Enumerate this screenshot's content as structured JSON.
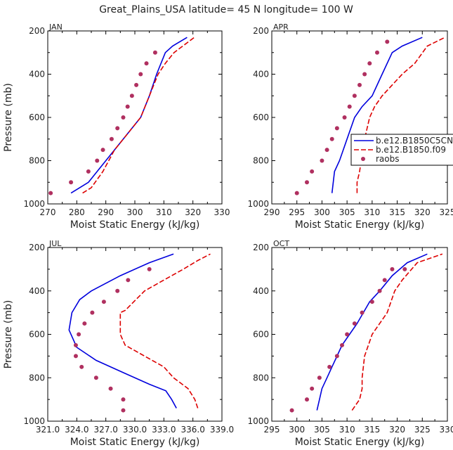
{
  "figure_title": "Great_Plains_USA   latitude= 45 N longitude= 100 W",
  "colors": {
    "model_coupled": "#0000dd",
    "model_f09": "#dd0000",
    "raobs": "#b03060"
  },
  "legend": {
    "entries": [
      {
        "label": "b.e12.B1850C5CN",
        "style": "solid"
      },
      {
        "label": "b.e12.B1850.f09",
        "style": "dashed"
      },
      {
        "label": "raobs",
        "style": "dots"
      }
    ]
  },
  "chart_data": [
    {
      "type": "line",
      "title": "JAN",
      "xlabel": "Moist Static Energy (kJ/kg)",
      "ylabel": "Pressure (mb)",
      "xlim": [
        270,
        330
      ],
      "ylim": [
        1000,
        200
      ],
      "xticks": [
        270,
        280,
        290,
        300,
        310,
        320,
        330
      ],
      "xtick_labels": [
        "270",
        "280",
        "290",
        "300",
        "310",
        "320",
        "330"
      ],
      "yticks": [
        200,
        400,
        600,
        800,
        1000
      ],
      "ytick_labels": [
        "200",
        "400",
        "600",
        "800",
        "1000"
      ],
      "series": [
        {
          "name": "b.e12.B1850C5CN",
          "style": "solid",
          "x": [
            278,
            281,
            284,
            287,
            290,
            293,
            296,
            299,
            302,
            305,
            307.5,
            310.5,
            313,
            318
          ],
          "y": [
            950,
            925,
            900,
            850,
            800,
            750,
            700,
            650,
            600,
            500,
            400,
            300,
            270,
            230
          ]
        },
        {
          "name": "b.e12.B1850.f09",
          "style": "dashed",
          "x": [
            282,
            285,
            289,
            293,
            296,
            299,
            302,
            305,
            308,
            310.5,
            313.5,
            316.5,
            320.5
          ],
          "y": [
            950,
            925,
            850,
            750,
            700,
            650,
            600,
            500,
            400,
            350,
            300,
            270,
            230
          ]
        },
        {
          "name": "raobs",
          "style": "dots",
          "x": [
            271,
            278,
            284,
            287,
            289,
            292,
            294,
            296,
            297.5,
            299,
            300.5,
            302,
            304,
            307
          ],
          "y": [
            950,
            900,
            850,
            800,
            750,
            700,
            650,
            600,
            550,
            500,
            450,
            400,
            350,
            300
          ]
        }
      ]
    },
    {
      "type": "line",
      "title": "APR",
      "xlabel": "Moist Static Energy (kJ/kg)",
      "ylabel": "",
      "xlim": [
        290,
        325
      ],
      "ylim": [
        1000,
        200
      ],
      "xticks": [
        290,
        295,
        300,
        305,
        310,
        315,
        320,
        325
      ],
      "xtick_labels": [
        "290",
        "295",
        "300",
        "305",
        "310",
        "315",
        "320",
        "325"
      ],
      "yticks": [
        200,
        400,
        600,
        800,
        1000
      ],
      "ytick_labels": [
        "200",
        "400",
        "600",
        "800",
        "1000"
      ],
      "series": [
        {
          "name": "b.e12.B1850C5CN",
          "style": "solid",
          "x": [
            302,
            302.5,
            303.5,
            305,
            306.5,
            308,
            310,
            312,
            314,
            316,
            320
          ],
          "y": [
            950,
            850,
            800,
            700,
            600,
            550,
            500,
            400,
            300,
            270,
            230
          ]
        },
        {
          "name": "b.e12.B1850.f09",
          "style": "dashed",
          "x": [
            307,
            307,
            307.5,
            308.5,
            309.5,
            310.5,
            312,
            314,
            316,
            318.5,
            321,
            324.5
          ],
          "y": [
            950,
            900,
            850,
            700,
            600,
            550,
            500,
            450,
            400,
            350,
            270,
            230
          ]
        },
        {
          "name": "raobs",
          "style": "dots",
          "x": [
            295,
            297,
            298,
            300,
            301,
            302,
            303,
            304.5,
            305.5,
            306.5,
            307.5,
            308.5,
            309.5,
            311,
            313
          ],
          "y": [
            950,
            900,
            850,
            800,
            750,
            700,
            650,
            600,
            550,
            500,
            450,
            400,
            350,
            300,
            250
          ]
        }
      ]
    },
    {
      "type": "line",
      "title": "JUL",
      "xlabel": "Moist Static Energy (kJ/kg)",
      "ylabel": "Pressure (mb)",
      "xlim": [
        321,
        339
      ],
      "ylim": [
        1000,
        200
      ],
      "xticks": [
        321,
        324,
        327,
        330,
        333,
        336,
        339
      ],
      "xtick_labels": [
        "321.0",
        "324.0",
        "327.0",
        "330.0",
        "333.0",
        "336.0",
        "339.0"
      ],
      "yticks": [
        200,
        400,
        600,
        800,
        1000
      ],
      "ytick_labels": [
        "200",
        "400",
        "600",
        "800",
        "1000"
      ],
      "series": [
        {
          "name": "b.e12.B1850C5CN",
          "style": "solid",
          "x": [
            334.3,
            333.8,
            333.2,
            331.5,
            329,
            326,
            324,
            323.2,
            323.5,
            324.3,
            325.5,
            328.5,
            331.5,
            334
          ],
          "y": [
            940,
            900,
            860,
            830,
            780,
            720,
            660,
            580,
            500,
            440,
            400,
            330,
            270,
            230
          ]
        },
        {
          "name": "b.e12.B1850.f09",
          "style": "dashed",
          "x": [
            336.5,
            336.2,
            335.5,
            334,
            333,
            331,
            329,
            328.5,
            328.5,
            329,
            331,
            333,
            335,
            336.5,
            337.8
          ],
          "y": [
            940,
            900,
            850,
            800,
            750,
            700,
            650,
            600,
            500,
            490,
            400,
            350,
            300,
            260,
            230
          ]
        },
        {
          "name": "raobs",
          "style": "dots",
          "x": [
            328.8,
            328.8,
            327.5,
            326,
            324.5,
            323.9,
            323.9,
            324.2,
            324.8,
            325.6,
            326.8,
            328.2,
            329.3,
            331.5
          ],
          "y": [
            950,
            900,
            850,
            800,
            750,
            700,
            650,
            600,
            550,
            500,
            450,
            400,
            350,
            300
          ]
        }
      ]
    },
    {
      "type": "line",
      "title": "OCT",
      "xlabel": "Moist Static Energy (kJ/kg)",
      "ylabel": "",
      "xlim": [
        295,
        330
      ],
      "ylim": [
        1000,
        200
      ],
      "xticks": [
        295,
        300,
        305,
        310,
        315,
        320,
        325,
        330
      ],
      "xtick_labels": [
        "295",
        "300",
        "305",
        "310",
        "315",
        "320",
        "325",
        "330"
      ],
      "yticks": [
        200,
        400,
        600,
        800,
        1000
      ],
      "ytick_labels": [
        "200",
        "400",
        "600",
        "800",
        "1000"
      ],
      "series": [
        {
          "name": "b.e12.B1850C5CN",
          "style": "solid",
          "x": [
            304,
            304.5,
            305,
            306,
            307,
            308,
            309,
            310.5,
            312,
            314.5,
            316.5,
            319,
            322,
            326
          ],
          "y": [
            950,
            900,
            850,
            800,
            750,
            700,
            650,
            600,
            550,
            450,
            400,
            330,
            270,
            230
          ]
        },
        {
          "name": "b.e12.B1850.f09",
          "style": "dashed",
          "x": [
            311,
            312.5,
            313,
            313,
            313.5,
            315,
            316.5,
            318,
            319.5,
            321,
            324,
            329
          ],
          "y": [
            950,
            900,
            850,
            800,
            700,
            600,
            550,
            500,
            400,
            350,
            270,
            230
          ]
        },
        {
          "name": "raobs",
          "style": "dots",
          "x": [
            299,
            302,
            303,
            304.5,
            306.5,
            308,
            309,
            310,
            311.5,
            313,
            315,
            316.5,
            317.5,
            319,
            321.5
          ],
          "y": [
            950,
            900,
            850,
            800,
            750,
            700,
            650,
            600,
            550,
            500,
            450,
            400,
            350,
            300,
            300
          ]
        }
      ]
    }
  ]
}
